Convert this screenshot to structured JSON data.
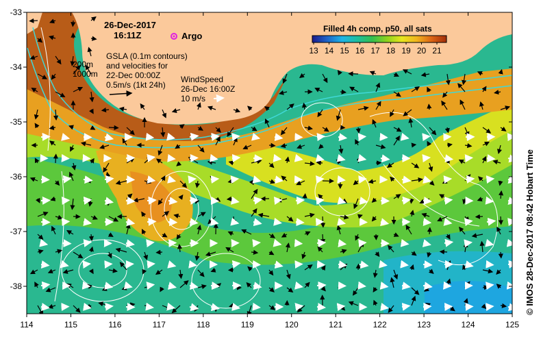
{
  "header": {
    "date": "26-Dec-2017",
    "time": "16:11Z"
  },
  "legend": {
    "argo_label": "Argo",
    "argo_color": "#e020e0"
  },
  "annotations": {
    "isobath_200": "200m",
    "isobath_1000": "1000m",
    "gsla_line1": "GSLA (0.1m contours)",
    "gsla_line2": "and velocities for",
    "gsla_line3": "22-Dec 00:00Z",
    "gsla_line4": "0.5m/s (1kt 24h)",
    "wind_line1": "WindSpeed",
    "wind_line2": "26-Dec 16:00Z",
    "wind_line3": "10 m/s"
  },
  "colorbar": {
    "title": "Filled 4h comp, p50, all sats",
    "ticks": [
      "13",
      "14",
      "15",
      "16",
      "17",
      "18",
      "19",
      "20",
      "21"
    ],
    "colors": [
      "#1a1a8c",
      "#1e64c8",
      "#1eb4e6",
      "#1ebea0",
      "#32be50",
      "#8cd21e",
      "#e6e61e",
      "#f0b41e",
      "#dc6414",
      "#a02d0a"
    ]
  },
  "credit": "© IMOS 28-Dec-2017 08:42 Hobart Time",
  "colors": {
    "land": "#fbc99b",
    "shelf": "#c06418",
    "warm": "#e8a020",
    "mid": "#d8e020",
    "cool": "#5cc83c",
    "cold": "#28b88c",
    "isobath": "#40d8d8",
    "contour": "#ffffff"
  },
  "axes": {
    "x_ticks": [
      "114",
      "115",
      "116",
      "117",
      "118",
      "119",
      "120",
      "121",
      "122",
      "123",
      "124",
      "125"
    ],
    "y_ticks": [
      "-33",
      "-34",
      "-35",
      "-36",
      "-37",
      "-38"
    ],
    "xlim": [
      114,
      125
    ],
    "ylim": [
      -38.5,
      -33
    ]
  }
}
